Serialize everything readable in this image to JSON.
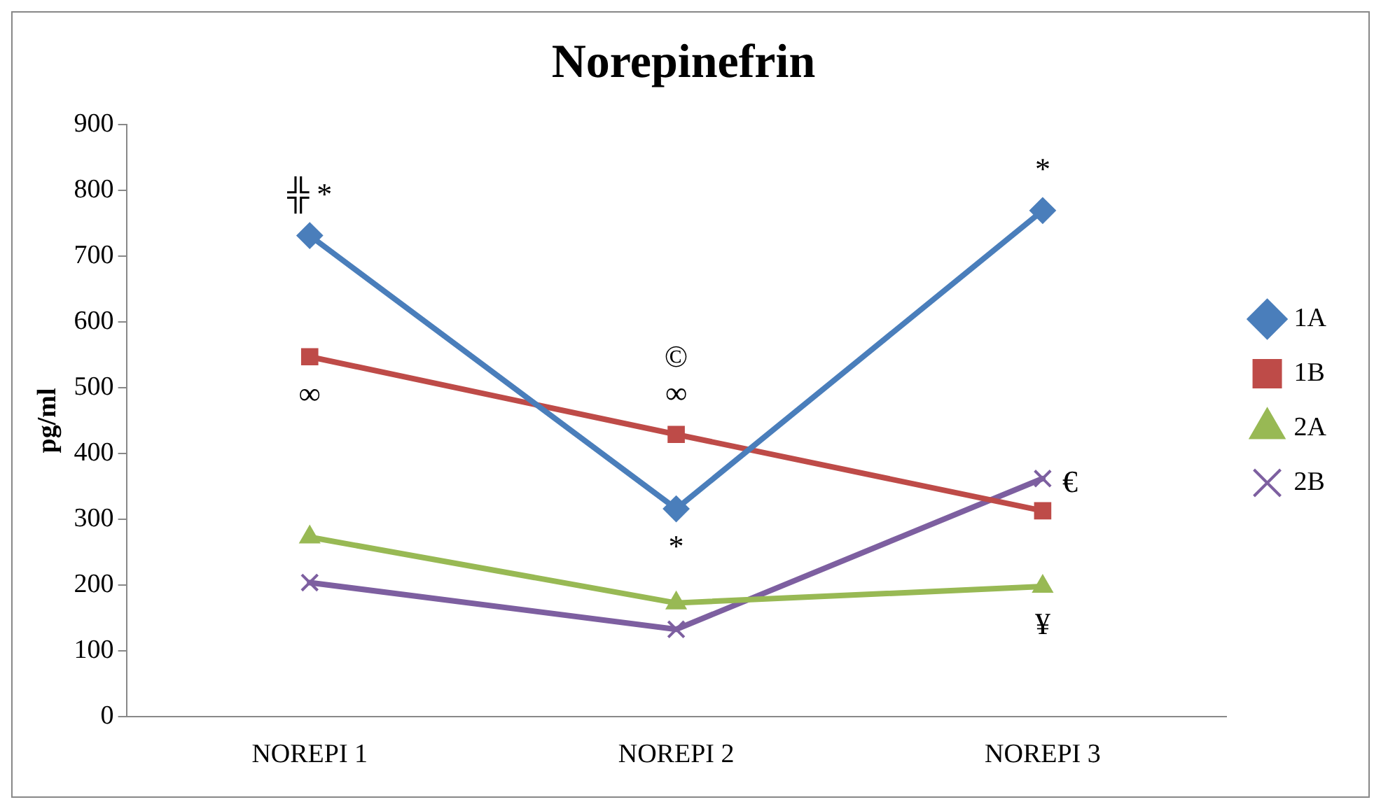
{
  "chart_data": {
    "type": "line",
    "title": "Norepinefrin",
    "ylabel": "pg/ml",
    "categories": [
      "NOREPI 1",
      "NOREPI 2",
      "NOREPI 3"
    ],
    "series": [
      {
        "name": "1A",
        "color": "#4a7ebb",
        "marker": "diamond",
        "values": [
          731,
          316,
          769
        ]
      },
      {
        "name": "1B",
        "color": "#be4b48",
        "marker": "square",
        "values": [
          547,
          429,
          313
        ]
      },
      {
        "name": "2A",
        "color": "#98b954",
        "marker": "triangle",
        "values": [
          273,
          173,
          198
        ]
      },
      {
        "name": "2B",
        "color": "#7d5fa0",
        "marker": "cross",
        "values": [
          204,
          133,
          362
        ]
      }
    ],
    "ylim": [
      0,
      900
    ],
    "yticks": [
      0,
      100,
      200,
      300,
      400,
      500,
      600,
      700,
      800,
      900
    ],
    "grid": false,
    "legend": "right",
    "line_style": "solid",
    "annotations": [
      {
        "text": "╬ *",
        "x": "NOREPI 1",
        "y": 731
      },
      {
        "text": "∞",
        "x": "NOREPI 1",
        "y": 547
      },
      {
        "text": "∞",
        "x": "NOREPI 2",
        "y": 429
      },
      {
        "text": "©",
        "x": "NOREPI 2",
        "y": 429
      },
      {
        "text": "*",
        "x": "NOREPI 2",
        "y": 316
      },
      {
        "text": "*",
        "x": "NOREPI 3",
        "y": 769
      },
      {
        "text": "€",
        "x": "NOREPI 3",
        "y": 362
      },
      {
        "text": "¥",
        "x": "NOREPI 3",
        "y": 198
      }
    ]
  }
}
